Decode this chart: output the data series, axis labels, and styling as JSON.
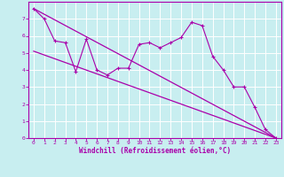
{
  "xlabel": "Windchill (Refroidissement éolien,°C)",
  "bg_color": "#c8eef0",
  "line_color": "#aa00aa",
  "grid_color": "#ffffff",
  "xlim": [
    -0.5,
    23.5
  ],
  "ylim": [
    0,
    8
  ],
  "xticks": [
    0,
    1,
    2,
    3,
    4,
    5,
    6,
    7,
    8,
    9,
    10,
    11,
    12,
    13,
    14,
    15,
    16,
    17,
    18,
    19,
    20,
    21,
    22,
    23
  ],
  "yticks": [
    0,
    1,
    2,
    3,
    4,
    5,
    6,
    7
  ],
  "line1_x": [
    0,
    1,
    2,
    3,
    4,
    5,
    6,
    7,
    8,
    9,
    10,
    11,
    12,
    13,
    14,
    15,
    16,
    17,
    18,
    19,
    20,
    21,
    22,
    23
  ],
  "line1_y": [
    7.6,
    7.0,
    5.7,
    5.6,
    3.9,
    5.8,
    4.0,
    3.7,
    4.1,
    4.1,
    5.5,
    5.6,
    5.3,
    5.6,
    5.9,
    6.8,
    6.6,
    4.8,
    4.0,
    3.0,
    3.0,
    1.8,
    0.5,
    0.0
  ],
  "line2_x": [
    0,
    23
  ],
  "line2_y": [
    7.6,
    0.0
  ],
  "line3_x": [
    0,
    23
  ],
  "line3_y": [
    5.1,
    0.0
  ]
}
